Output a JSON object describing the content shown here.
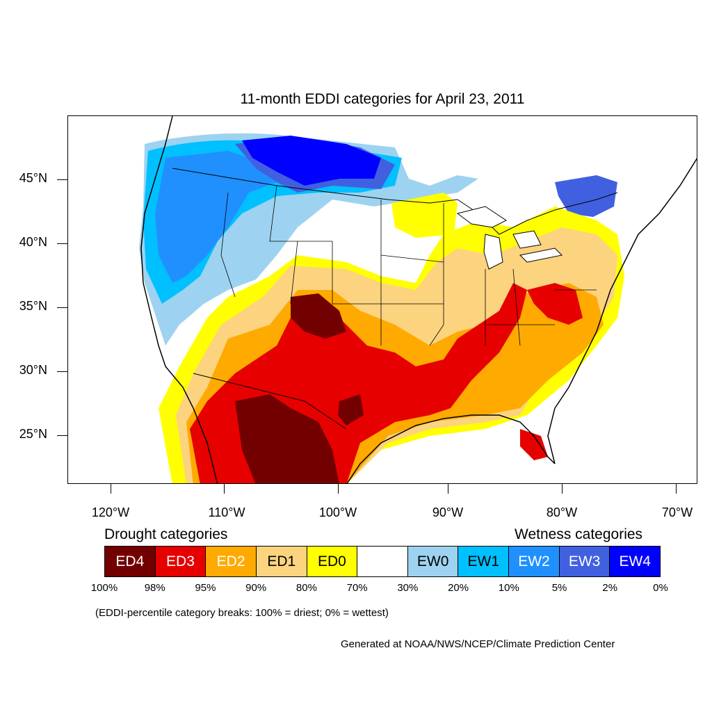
{
  "title": "11-month EDDI categories for April 23, 2011",
  "y_axis_labels": [
    "45°N",
    "40°N",
    "35°N",
    "30°N",
    "25°N"
  ],
  "x_axis_labels": [
    "120°W",
    "110°W",
    "100°W",
    "90°W",
    "80°W",
    "70°W"
  ],
  "legend": {
    "drought_heading": "Drought categories",
    "wetness_heading": "Wetness categories",
    "categories": [
      {
        "label": "ED4",
        "color": "#730000",
        "text_color": "#ffffff"
      },
      {
        "label": "ED3",
        "color": "#e60000",
        "text_color": "#ffffff"
      },
      {
        "label": "ED2",
        "color": "#ffaa00",
        "text_color": "#ffffff"
      },
      {
        "label": "ED1",
        "color": "#fcd37f",
        "text_color": "#000000"
      },
      {
        "label": "ED0",
        "color": "#ffff00",
        "text_color": "#000000"
      },
      {
        "label": "",
        "color": "#ffffff",
        "text_color": "#000000"
      },
      {
        "label": "EW0",
        "color": "#9dd3f0",
        "text_color": "#000000"
      },
      {
        "label": "EW1",
        "color": "#00c0ff",
        "text_color": "#000000"
      },
      {
        "label": "EW2",
        "color": "#2090ff",
        "text_color": "#ffffff"
      },
      {
        "label": "EW3",
        "color": "#4060e0",
        "text_color": "#ffffff"
      },
      {
        "label": "EW4",
        "color": "#0000ff",
        "text_color": "#ffffff"
      }
    ],
    "percentiles": [
      "100%",
      "98%",
      "95%",
      "90%",
      "80%",
      "70%",
      "30%",
      "20%",
      "10%",
      "5%",
      "2%",
      "0%"
    ]
  },
  "note": "(EDDI-percentile category breaks: 100% = driest; 0% = wettest)",
  "credit": "Generated at NOAA/NWS/NCEP/Climate Prediction Center"
}
